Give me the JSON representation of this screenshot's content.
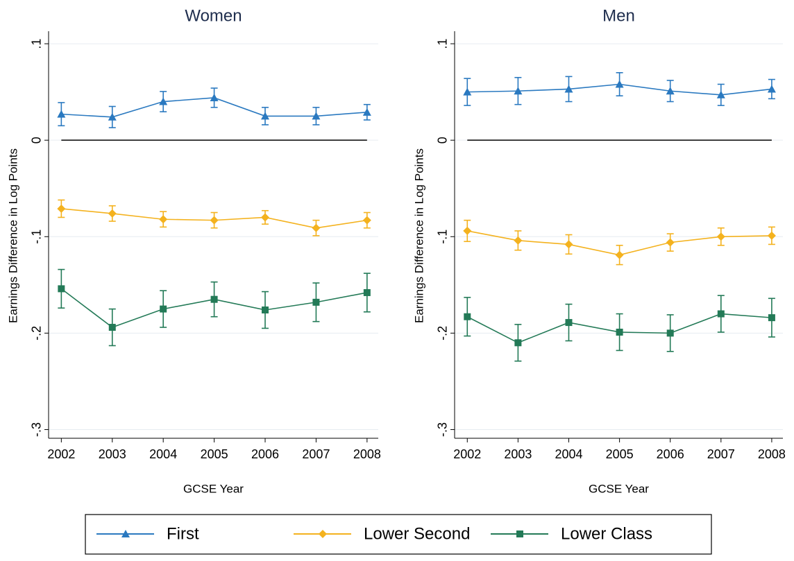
{
  "chart_data": [
    {
      "type": "line",
      "title": "Women",
      "x_label": "GCSE Year",
      "y_label": "Earnings Difference in Log Points",
      "x": [
        2002,
        2003,
        2004,
        2005,
        2006,
        2007,
        2008
      ],
      "series": [
        {
          "name": "First",
          "color": "#2a79c0",
          "marker": "triangle",
          "values": [
            0.027,
            0.024,
            0.04,
            0.044,
            0.025,
            0.025,
            0.029
          ],
          "errors": [
            0.012,
            0.011,
            0.0105,
            0.01,
            0.009,
            0.009,
            0.008
          ]
        },
        {
          "name": "Lower Second",
          "color": "#f4b21e",
          "marker": "diamond",
          "values": [
            -0.071,
            -0.076,
            -0.082,
            -0.083,
            -0.08,
            -0.091,
            -0.083
          ],
          "errors": [
            0.009,
            0.008,
            0.008,
            0.008,
            0.007,
            0.008,
            0.008
          ]
        },
        {
          "name": "Lower Class",
          "color": "#237a57",
          "marker": "square",
          "values": [
            -0.154,
            -0.194,
            -0.175,
            -0.165,
            -0.176,
            -0.168,
            -0.158
          ],
          "errors": [
            0.02,
            0.019,
            0.019,
            0.018,
            0.019,
            0.02,
            0.02
          ]
        }
      ],
      "xlim": [
        2001.75,
        2008.22
      ],
      "xticks": [
        2002,
        2003,
        2004,
        2005,
        2006,
        2007,
        2008
      ],
      "ylim": [
        -0.309,
        0.113
      ],
      "yticks": [
        {
          "value": -0.3,
          "label": "-.3"
        },
        {
          "value": -0.2,
          "label": "-.2"
        },
        {
          "value": -0.1,
          "label": "-.1"
        },
        0,
        {
          "value": 0.1,
          "label": ".1"
        }
      ],
      "grid": true,
      "reference_line": 0,
      "legend": "bottom"
    },
    {
      "type": "line",
      "title": "Men",
      "x_label": "GCSE Year",
      "y_label": "Earnings Difference in Log Points",
      "x": [
        2002,
        2003,
        2004,
        2005,
        2006,
        2007,
        2008
      ],
      "series": [
        {
          "name": "First",
          "color": "#2a79c0",
          "marker": "triangle",
          "values": [
            0.05,
            0.051,
            0.053,
            0.058,
            0.051,
            0.047,
            0.053
          ],
          "errors": [
            0.014,
            0.014,
            0.013,
            0.012,
            0.011,
            0.011,
            0.01
          ]
        },
        {
          "name": "Lower Second",
          "color": "#f4b21e",
          "marker": "diamond",
          "values": [
            -0.094,
            -0.104,
            -0.108,
            -0.119,
            -0.106,
            -0.1,
            -0.099
          ],
          "errors": [
            0.011,
            0.01,
            0.01,
            0.01,
            0.009,
            0.009,
            0.009
          ]
        },
        {
          "name": "Lower Class",
          "color": "#237a57",
          "marker": "square",
          "values": [
            -0.183,
            -0.21,
            -0.189,
            -0.199,
            -0.2,
            -0.18,
            -0.184
          ],
          "errors": [
            0.02,
            0.019,
            0.019,
            0.019,
            0.019,
            0.019,
            0.02
          ]
        }
      ],
      "xlim": [
        2001.75,
        2008.22
      ],
      "xticks": [
        2002,
        2003,
        2004,
        2005,
        2006,
        2007,
        2008
      ],
      "ylim": [
        -0.309,
        0.113
      ],
      "yticks": [
        {
          "value": -0.3,
          "label": "-.3"
        },
        {
          "value": -0.2,
          "label": "-.2"
        },
        {
          "value": -0.1,
          "label": "-.1"
        },
        0,
        {
          "value": 0.1,
          "label": ".1"
        }
      ],
      "grid": true,
      "reference_line": 0
    }
  ]
}
